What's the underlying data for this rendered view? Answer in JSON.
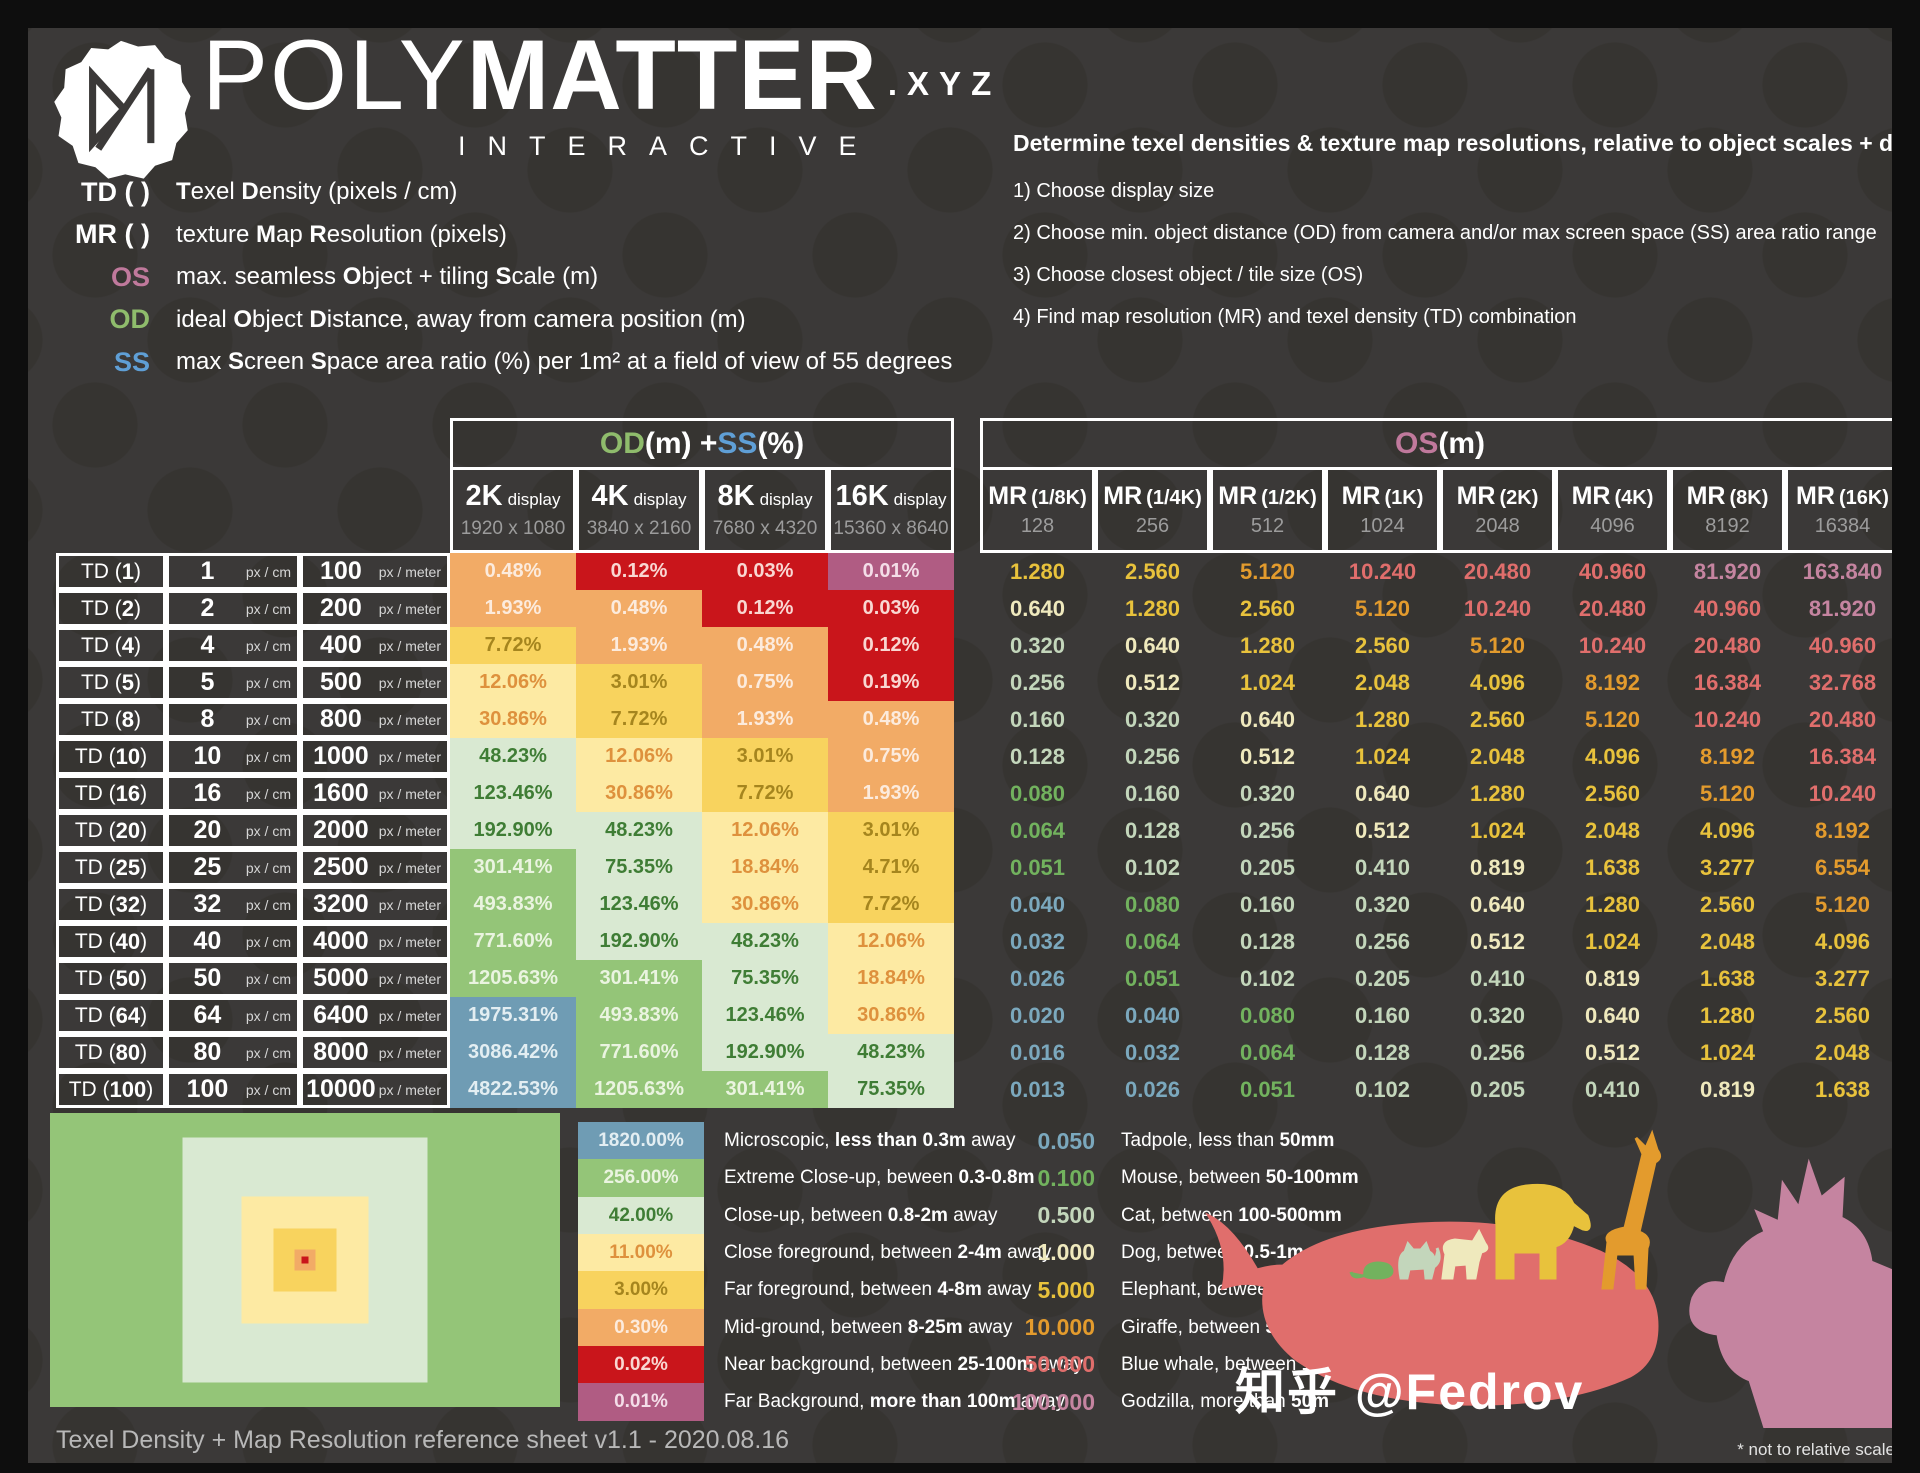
{
  "brand": {
    "poly": "POLY",
    "matter": "MATTER",
    "tld": ".XYZ",
    "sub": "INTERACTIVE"
  },
  "colors": {
    "od_green": "#8fbc6c",
    "ss_blue": "#5f9fd6",
    "os_pink": "#c0799c",
    "background": "#3b3938",
    "frame": "#0e0e0e",
    "muted": "#9c9c9c"
  },
  "key_legend": [
    {
      "label": "TD ( )",
      "color": "white",
      "desc_html": "<b>T</b>exel <b>D</b>ensity (pixels / cm)"
    },
    {
      "label": "MR ( )",
      "color": "white",
      "desc_html": "texture <b>M</b>ap <b>R</b>esolution (pixels)"
    },
    {
      "label": "OS",
      "color": "os",
      "desc_html": "max. seamless <b>O</b>bject + tiling <b>S</b>cale (m)"
    },
    {
      "label": "OD",
      "color": "od",
      "desc_html": "ideal <b>O</b>bject <b>D</b>istance, away from camera position (m)"
    },
    {
      "label": "SS",
      "color": "ss",
      "desc_html": "max <b>S</b>creen <b>S</b>pace area ratio (%) per 1m² at a field of view of 55 degrees"
    }
  ],
  "instructions": {
    "title": "Determine texel densities & texture map resolutions, relative to object scales + distances",
    "steps": [
      "1) Choose display size",
      "2) Choose min. object distance (OD) from camera and/or max screen space (SS) area ratio range",
      "3) Choose closest object / tile size (OS)",
      "4) Find map resolution (MR) and texel density (TD) combination"
    ]
  },
  "left_table": {
    "header_html": "<span class='c-od'>OD</span> (m) + <span class='c-ss'>SS</span> (%)",
    "displays": [
      {
        "size": "2K",
        "word": "display",
        "res": "1920 x 1080"
      },
      {
        "size": "4K",
        "word": "display",
        "res": "3840 x 2160"
      },
      {
        "size": "8K",
        "word": "display",
        "res": "7680 x 4320"
      },
      {
        "size": "16K",
        "word": "display",
        "res": "15360 x 8640"
      }
    ],
    "unit_cm": "px / cm",
    "unit_m": "px / meter",
    "td_rows": [
      {
        "label_html": "TD (<b>1</b>)",
        "cm": "1",
        "m": "100"
      },
      {
        "label_html": "TD (<b>2</b>)",
        "cm": "2",
        "m": "200"
      },
      {
        "label_html": "TD (<b>4</b>)",
        "cm": "4",
        "m": "400"
      },
      {
        "label_html": "TD (<b>5</b>)",
        "cm": "5",
        "m": "500"
      },
      {
        "label_html": "TD (<b>8</b>)",
        "cm": "8",
        "m": "800"
      },
      {
        "label_html": "TD (<b>10</b>)",
        "cm": "10",
        "m": "1000"
      },
      {
        "label_html": "TD (<b>16</b>)",
        "cm": "16",
        "m": "1600"
      },
      {
        "label_html": "TD (<b>20</b>)",
        "cm": "20",
        "m": "2000"
      },
      {
        "label_html": "TD (<b>25</b>)",
        "cm": "25",
        "m": "2500"
      },
      {
        "label_html": "TD (<b>32</b>)",
        "cm": "32",
        "m": "3200"
      },
      {
        "label_html": "TD (<b>40</b>)",
        "cm": "40",
        "m": "4000"
      },
      {
        "label_html": "TD (<b>50</b>)",
        "cm": "50",
        "m": "5000"
      },
      {
        "label_html": "TD (<b>64</b>)",
        "cm": "64",
        "m": "6400"
      },
      {
        "label_html": "TD (<b>80</b>)",
        "cm": "80",
        "m": "8000"
      },
      {
        "label_html": "TD (<b>100</b>)",
        "cm": "100",
        "m": "10000"
      }
    ]
  },
  "right_table": {
    "header_html": "<span class='c-os'>OS</span> (m)",
    "mr_headers": [
      {
        "prefix": "MR",
        "size": "(1/8K)",
        "px": "128"
      },
      {
        "prefix": "MR",
        "size": "(1/4K)",
        "px": "256"
      },
      {
        "prefix": "MR",
        "size": "(1/2K)",
        "px": "512"
      },
      {
        "prefix": "MR",
        "size": "(1K)",
        "px": "1024"
      },
      {
        "prefix": "MR",
        "size": "(2K)",
        "px": "2048"
      },
      {
        "prefix": "MR",
        "size": "(4K)",
        "px": "4096"
      },
      {
        "prefix": "MR",
        "size": "(8K)",
        "px": "8192"
      },
      {
        "prefix": "MR",
        "size": "(16K)",
        "px": "16384"
      }
    ]
  },
  "chart_data": [
    {
      "type": "heatmap",
      "title": "OD (m) + SS (%)",
      "xlabel": "display size",
      "ylabel": "texel density (px/cm)",
      "columns": [
        "2K display 1920 x 1080",
        "4K display 3840 x 2160",
        "8K display 7680 x 4320",
        "16K display 15360 x 8640"
      ],
      "rows": [
        "TD (1)",
        "TD (2)",
        "TD (4)",
        "TD (5)",
        "TD (8)",
        "TD (10)",
        "TD (16)",
        "TD (20)",
        "TD (25)",
        "TD (32)",
        "TD (40)",
        "TD (50)",
        "TD (64)",
        "TD (80)",
        "TD (100)"
      ],
      "values": [
        [
          "0.48%",
          "0.12%",
          "0.03%",
          "0.01%"
        ],
        [
          "1.93%",
          "0.48%",
          "0.12%",
          "0.03%"
        ],
        [
          "7.72%",
          "1.93%",
          "0.48%",
          "0.12%"
        ],
        [
          "12.06%",
          "3.01%",
          "0.75%",
          "0.19%"
        ],
        [
          "30.86%",
          "7.72%",
          "1.93%",
          "0.48%"
        ],
        [
          "48.23%",
          "12.06%",
          "3.01%",
          "0.75%"
        ],
        [
          "123.46%",
          "30.86%",
          "7.72%",
          "1.93%"
        ],
        [
          "192.90%",
          "48.23%",
          "12.06%",
          "3.01%"
        ],
        [
          "301.41%",
          "75.35%",
          "18.84%",
          "4.71%"
        ],
        [
          "493.83%",
          "123.46%",
          "30.86%",
          "7.72%"
        ],
        [
          "771.60%",
          "192.90%",
          "48.23%",
          "12.06%"
        ],
        [
          "1205.63%",
          "301.41%",
          "75.35%",
          "18.84%"
        ],
        [
          "1975.31%",
          "493.83%",
          "123.46%",
          "30.86%"
        ],
        [
          "3086.42%",
          "771.60%",
          "192.90%",
          "48.23%"
        ],
        [
          "4822.53%",
          "1205.63%",
          "301.41%",
          "75.35%"
        ]
      ]
    },
    {
      "type": "table",
      "title": "OS (m)",
      "columns": [
        "MR (1/8K) 128",
        "MR (1/4K) 256",
        "MR (1/2K) 512",
        "MR (1K) 1024",
        "MR (2K) 2048",
        "MR (4K) 4096",
        "MR (8K) 8192",
        "MR (16K) 16384"
      ],
      "rows": [
        "TD (1)",
        "TD (2)",
        "TD (4)",
        "TD (5)",
        "TD (8)",
        "TD (10)",
        "TD (16)",
        "TD (20)",
        "TD (25)",
        "TD (32)",
        "TD (40)",
        "TD (50)",
        "TD (64)",
        "TD (80)",
        "TD (100)"
      ],
      "values": [
        [
          "1.280",
          "2.560",
          "5.120",
          "10.240",
          "20.480",
          "40.960",
          "81.920",
          "163.840"
        ],
        [
          "0.640",
          "1.280",
          "2.560",
          "5.120",
          "10.240",
          "20.480",
          "40.960",
          "81.920"
        ],
        [
          "0.320",
          "0.640",
          "1.280",
          "2.560",
          "5.120",
          "10.240",
          "20.480",
          "40.960"
        ],
        [
          "0.256",
          "0.512",
          "1.024",
          "2.048",
          "4.096",
          "8.192",
          "16.384",
          "32.768"
        ],
        [
          "0.160",
          "0.320",
          "0.640",
          "1.280",
          "2.560",
          "5.120",
          "10.240",
          "20.480"
        ],
        [
          "0.128",
          "0.256",
          "0.512",
          "1.024",
          "2.048",
          "4.096",
          "8.192",
          "16.384"
        ],
        [
          "0.080",
          "0.160",
          "0.320",
          "0.640",
          "1.280",
          "2.560",
          "5.120",
          "10.240"
        ],
        [
          "0.064",
          "0.128",
          "0.256",
          "0.512",
          "1.024",
          "2.048",
          "4.096",
          "8.192"
        ],
        [
          "0.051",
          "0.102",
          "0.205",
          "0.410",
          "0.819",
          "1.638",
          "3.277",
          "6.554"
        ],
        [
          "0.040",
          "0.080",
          "0.160",
          "0.320",
          "0.640",
          "1.280",
          "2.560",
          "5.120"
        ],
        [
          "0.032",
          "0.064",
          "0.128",
          "0.256",
          "0.512",
          "1.024",
          "2.048",
          "4.096"
        ],
        [
          "0.026",
          "0.051",
          "0.102",
          "0.205",
          "0.410",
          "0.819",
          "1.638",
          "3.277"
        ],
        [
          "0.020",
          "0.040",
          "0.080",
          "0.160",
          "0.320",
          "0.640",
          "1.280",
          "2.560"
        ],
        [
          "0.016",
          "0.032",
          "0.064",
          "0.128",
          "0.256",
          "0.512",
          "1.024",
          "2.048"
        ],
        [
          "0.013",
          "0.026",
          "0.051",
          "0.102",
          "0.205",
          "0.410",
          "0.819",
          "1.638"
        ]
      ]
    }
  ],
  "ss_categories": [
    {
      "name": "microscopic",
      "min": 1820,
      "bg": "#6f9cb4",
      "fg": "#e3eef2"
    },
    {
      "name": "extreme-closeup",
      "min": 256,
      "bg": "#94c578",
      "fg": "#eaf4e0"
    },
    {
      "name": "closeup",
      "min": 42,
      "bg": "#d9e9d2",
      "fg": "#3f7d35"
    },
    {
      "name": "close-foreground",
      "min": 11,
      "bg": "#fdeaa3",
      "fg": "#de913d"
    },
    {
      "name": "far-foreground",
      "min": 3,
      "bg": "#f8d35e",
      "fg": "#a5851e"
    },
    {
      "name": "mid-ground",
      "min": 0.3,
      "bg": "#f2ab66",
      "fg": "#fcebdd"
    },
    {
      "name": "near-background",
      "min": 0.02,
      "bg": "#c9151b",
      "fg": "#f9d7d2"
    },
    {
      "name": "far-background",
      "min": 0,
      "bg": "#b05c83",
      "fg": "#f4dde8"
    }
  ],
  "os_categories": [
    {
      "name": "godzilla",
      "min": 50,
      "color": "#c584a0"
    },
    {
      "name": "blue-whale",
      "min": 10,
      "color": "#e06e6c"
    },
    {
      "name": "giraffe",
      "min": 5,
      "color": "#e39b2d"
    },
    {
      "name": "elephant",
      "min": 1,
      "color": "#e8c23c"
    },
    {
      "name": "dog",
      "min": 0.5,
      "color": "#efe9bd"
    },
    {
      "name": "cat",
      "min": 0.1,
      "color": "#c3d6bb"
    },
    {
      "name": "mouse",
      "min": 0.05,
      "color": "#72b25e"
    },
    {
      "name": "tadpole",
      "min": 0,
      "color": "#7ba8bd"
    }
  ],
  "ss_legend": [
    {
      "value": "1820.00%",
      "category": "microscopic",
      "desc_html": "Microscopic, <b>less than 0.3m</b> away"
    },
    {
      "value": "256.00%",
      "category": "extreme-closeup",
      "desc_html": "Extreme Close-up, beween <b>0.3-0.8m</b>"
    },
    {
      "value": "42.00%",
      "category": "closeup",
      "desc_html": "Close-up, between <b>0.8-2m</b> away"
    },
    {
      "value": "11.00%",
      "category": "close-foreground",
      "desc_html": "Close foreground, between <b>2-4m</b> away"
    },
    {
      "value": "3.00%",
      "category": "far-foreground",
      "desc_html": "Far foreground, between <b>4-8m</b> away"
    },
    {
      "value": "0.30%",
      "category": "mid-ground",
      "desc_html": "Mid-ground, between <b>8-25m</b> away"
    },
    {
      "value": "0.02%",
      "category": "near-background",
      "desc_html": "Near background, between <b>25-100m</b> away"
    },
    {
      "value": "0.01%",
      "category": "far-background",
      "desc_html": "Far Background, <b>more than 100m</b> away"
    }
  ],
  "os_legend": [
    {
      "value": "0.050",
      "category": "tadpole",
      "desc_html": "Tadpole, less than <b>50mm</b>"
    },
    {
      "value": "0.100",
      "category": "mouse",
      "desc_html": "Mouse, between <b>50-100mm</b>"
    },
    {
      "value": "0.500",
      "category": "cat",
      "desc_html": "Cat, between <b>100-500mm</b>"
    },
    {
      "value": "1.000",
      "category": "dog",
      "desc_html": "Dog, between <b>0.5-1m</b>"
    },
    {
      "value": "5.000",
      "category": "elephant",
      "desc_html": "Elephant, between <b>1-5m</b>"
    },
    {
      "value": "10.000",
      "category": "giraffe",
      "desc_html": "Giraffe, between <b>5-10m</b>"
    },
    {
      "value": "50.000",
      "category": "blue-whale",
      "desc_html": "Blue whale, between <b>10-50m</b>"
    },
    {
      "value": "100.000",
      "category": "godzilla",
      "desc_html": "Godzilla, more than <b>50m</b>"
    }
  ],
  "preview": {
    "outer_category": "extreme-closeup",
    "nested": [
      {
        "size": 245,
        "category": "closeup"
      },
      {
        "size": 127,
        "category": "close-foreground"
      },
      {
        "size": 63,
        "category": "far-foreground"
      },
      {
        "size": 21,
        "category": "mid-ground"
      },
      {
        "size": 7,
        "category": "near-background"
      }
    ]
  },
  "footer": {
    "left": "Texel Density + Map Resolution reference sheet v1.1 - 2020.08.16",
    "note": "* not to relative scale",
    "watermark": "知乎 @Fedrov"
  }
}
